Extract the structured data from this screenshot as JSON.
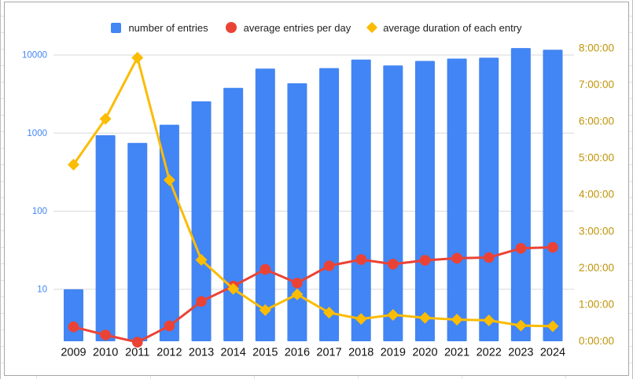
{
  "chart_data": {
    "type": "bar",
    "subtype": "combo-bar-line-line",
    "title": "",
    "categories": [
      "2009",
      "2010",
      "2011",
      "2012",
      "2013",
      "2014",
      "2015",
      "2016",
      "2017",
      "2018",
      "2019",
      "2020",
      "2021",
      "2022",
      "2023",
      "2024"
    ],
    "series": [
      {
        "name": "number of entries",
        "type": "bar",
        "marker": "square",
        "axis": "left",
        "color": "#4285f4",
        "values": [
          10,
          940,
          750,
          1280,
          2550,
          3800,
          6700,
          4350,
          6800,
          8750,
          7350,
          8400,
          9000,
          9250,
          12300,
          11700
        ]
      },
      {
        "name": "average entries per day",
        "type": "line",
        "marker": "circle",
        "axis": "left",
        "color": "#ea4335",
        "values": [
          3.3,
          2.6,
          2.1,
          3.4,
          7,
          11,
          18,
          12,
          20,
          24,
          21,
          23.5,
          25,
          25.5,
          33.5,
          34.5
        ]
      },
      {
        "name": "average duration of each entry",
        "type": "line",
        "marker": "diamond",
        "axis": "right",
        "color": "#fbbc04",
        "values_hours": [
          4.82,
          6.07,
          7.74,
          4.4,
          2.22,
          1.43,
          0.85,
          1.28,
          0.78,
          0.61,
          0.72,
          0.64,
          0.59,
          0.57,
          0.43,
          0.41
        ],
        "duration_labels": [
          "4:49:00",
          "6:04:00",
          "7:44:00",
          "4:24:00",
          "2:13:00",
          "1:26:00",
          "0:51:00",
          "1:17:00",
          "0:47:00",
          "0:37:00",
          "0:43:00",
          "0:38:00",
          "0:35:00",
          "0:34:00",
          "0:26:00",
          "0:25:00"
        ]
      }
    ],
    "left_axis": {
      "scale": "log",
      "tick_labels": [
        "10",
        "100",
        "1000",
        "10000"
      ],
      "label_color": "#4285f4"
    },
    "right_axis": {
      "scale": "time",
      "tick_labels": [
        "0:00:00",
        "1:00:00",
        "2:00:00",
        "3:00:00",
        "4:00:00",
        "5:00:00",
        "6:00:00",
        "7:00:00",
        "8:00:00"
      ],
      "max_hours": 8,
      "label_color": "#bf9408"
    },
    "x_axis": {
      "label_color": "#111111"
    },
    "grid": {
      "color": "#d9d9d9"
    },
    "legend_position": "top"
  }
}
